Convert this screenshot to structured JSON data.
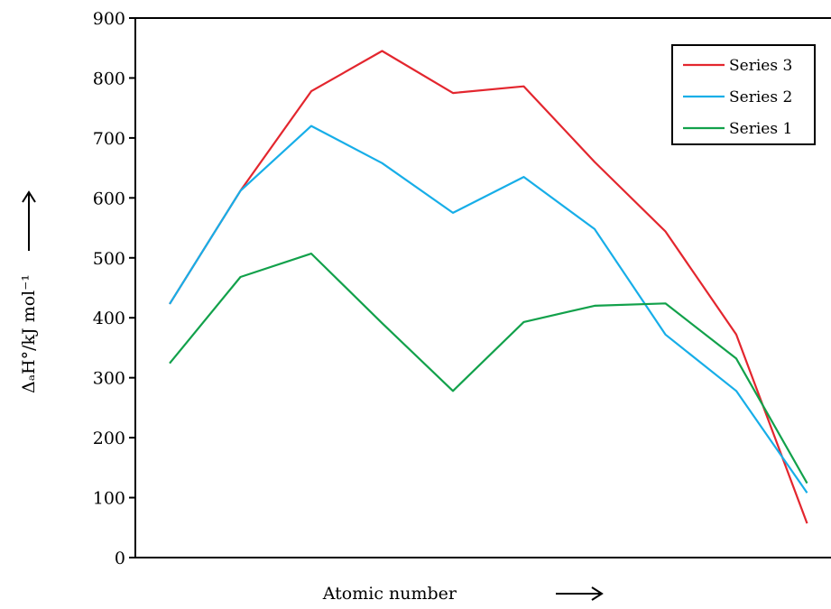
{
  "chart_data": {
    "type": "line",
    "xlabel": "Atomic number",
    "ylabel": "ΔₐH°/kJ mol⁻¹",
    "ylim": [
      0,
      900
    ],
    "yticks": [
      0,
      100,
      200,
      300,
      400,
      500,
      600,
      700,
      800,
      900
    ],
    "x": [
      1,
      2,
      3,
      4,
      5,
      6,
      7,
      8,
      9,
      10
    ],
    "legend_position": "top-right",
    "grid": false,
    "series": [
      {
        "name": "Series 3",
        "color": "#e3262e",
        "values": [
          423,
          612,
          778,
          845,
          775,
          786,
          660,
          544,
          372,
          57
        ]
      },
      {
        "name": "Series 2",
        "color": "#17aee8",
        "values": [
          423,
          612,
          720,
          658,
          575,
          635,
          548,
          372,
          278,
          108
        ]
      },
      {
        "name": "Series 1",
        "color": "#12a14b",
        "values": [
          324,
          468,
          507,
          391,
          278,
          393,
          420,
          424,
          332,
          124
        ]
      }
    ]
  }
}
